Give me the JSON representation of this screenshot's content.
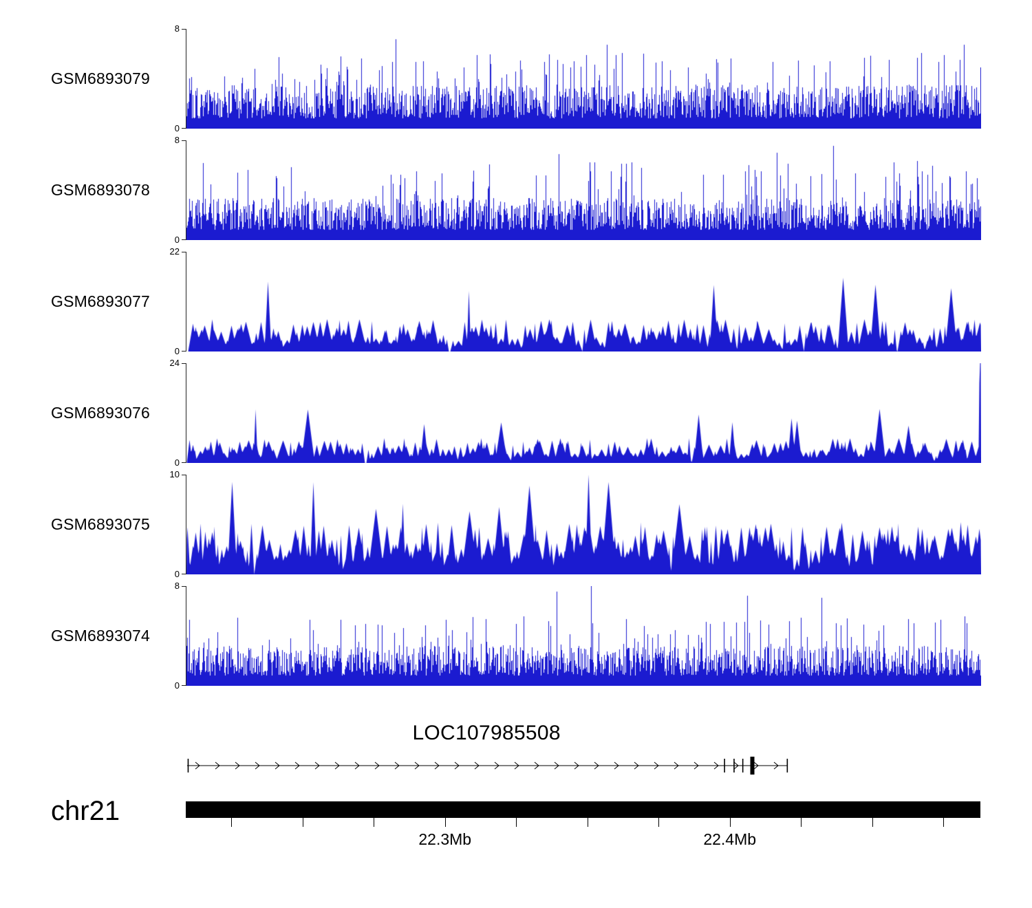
{
  "figure": {
    "kind": "genome-browser-coverage-tracks"
  },
  "chart_data": {
    "type": "area",
    "color": "#1b1bd0",
    "legend_position": "none",
    "grid": false,
    "tracks": [
      {
        "name": "GSM6893079",
        "ymax": 8,
        "ymin": 0,
        "style": "bars",
        "seed": 101,
        "base": 0.34,
        "spike_prob": 0.1,
        "spike_amp": 0.42,
        "tall_prob": 0.004,
        "tall_amp": 0.98
      },
      {
        "name": "GSM6893078",
        "ymax": 8,
        "ymin": 0,
        "style": "bars",
        "seed": 202,
        "base": 0.32,
        "spike_prob": 0.11,
        "spike_amp": 0.48,
        "tall_prob": 0.003,
        "tall_amp": 0.95
      },
      {
        "name": "GSM6893077",
        "ymax": 22,
        "ymin": 0,
        "style": "peaks",
        "seed": 303,
        "base": 0.26,
        "gap": 9,
        "peak_w": 9,
        "spike_prob": 0.045,
        "spike_amp": 0.8,
        "tall_prob": 0.0015,
        "tall_amp": 1.0
      },
      {
        "name": "GSM6893076",
        "ymax": 24,
        "ymin": 0,
        "style": "peaks",
        "seed": 404,
        "base": 0.2,
        "gap": 9,
        "peak_w": 9,
        "spike_prob": 0.05,
        "spike_amp": 0.55,
        "tall_prob": 0.001,
        "tall_amp": 0.8,
        "edge_spike": true
      },
      {
        "name": "GSM6893075",
        "ymax": 10,
        "ymin": 0,
        "style": "peaks",
        "seed": 505,
        "base": 0.42,
        "gap": 8,
        "peak_w": 10,
        "spike_prob": 0.06,
        "spike_amp": 0.95,
        "tall_prob": 0.002,
        "tall_amp": 1.0
      },
      {
        "name": "GSM6893074",
        "ymax": 8,
        "ymin": 0,
        "style": "bars",
        "seed": 606,
        "base": 0.3,
        "spike_prob": 0.09,
        "spike_amp": 0.4,
        "tall_prob": 0.0025,
        "tall_amp": 1.0
      }
    ],
    "gene": {
      "name": "LOC107985508",
      "extent_frac": 0.757,
      "arrow_spacing_px": 29,
      "exon_fracs": [
        0.003,
        0.678,
        0.69,
        0.701,
        0.757
      ],
      "thick_exon_frac": 0.713
    },
    "x_axis": {
      "chrom": "chr21",
      "range_mb": [
        22.209,
        22.488
      ],
      "minor_tick_step_mb": 0.025,
      "major_ticks": [
        {
          "mb": 22.3,
          "label": "22.3Mb"
        },
        {
          "mb": 22.4,
          "label": "22.4Mb"
        }
      ]
    }
  }
}
